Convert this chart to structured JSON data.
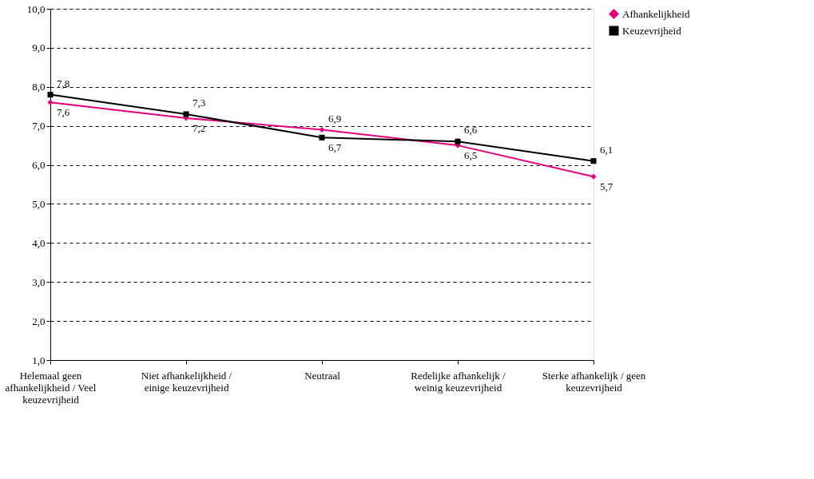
{
  "chart_data": {
    "type": "line",
    "categories": [
      "Helemaal geen afhankelijkheid / Veel keuzevrijheid",
      "Niet afhankelijkheid / einige keuzevrijheid",
      "Neutraal",
      "Redelijke afhankelijk / weinig keuzevrijheid",
      "Sterke afhankelijk / geen keuzevrijheid"
    ],
    "series": [
      {
        "name": "Afhankelijkheid",
        "color": "#e6007e",
        "marker": "diamond",
        "values": [
          7.6,
          7.2,
          6.9,
          6.5,
          5.7
        ],
        "value_labels": [
          "7,6",
          "7,2",
          "6,9",
          "6,5",
          "5,7"
        ]
      },
      {
        "name": "Keuzevrijheid",
        "color": "#000000",
        "marker": "square",
        "values": [
          7.8,
          7.3,
          6.7,
          6.6,
          6.1
        ],
        "value_labels": [
          "7,8",
          "7,3",
          "6,7",
          "6,6",
          "6,1"
        ]
      }
    ],
    "ylim": [
      1,
      10
    ],
    "yticks": [
      {
        "value": 1,
        "label": "1,0"
      },
      {
        "value": 2,
        "label": "2,0"
      },
      {
        "value": 3,
        "label": "3,0"
      },
      {
        "value": 4,
        "label": "4,0"
      },
      {
        "value": 5,
        "label": "5,0"
      },
      {
        "value": 6,
        "label": "6,0"
      },
      {
        "value": 7,
        "label": "7,0"
      },
      {
        "value": 8,
        "label": "8,0"
      },
      {
        "value": 9,
        "label": "9,0"
      },
      {
        "value": 10,
        "label": "10,0"
      }
    ],
    "grid": "y",
    "legend": "right",
    "line_style": "solid"
  }
}
